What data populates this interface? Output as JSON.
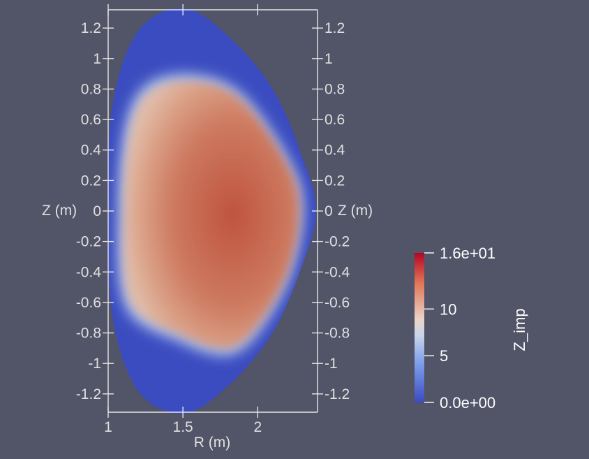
{
  "chart_data": {
    "type": "heatmap",
    "title": "",
    "xlabel": "R (m)",
    "ylabel_left": "Z (m)",
    "ylabel_right": "Z (m)",
    "xlim": [
      1.0,
      2.4
    ],
    "ylim": [
      -1.32,
      1.32
    ],
    "x_ticks": [
      {
        "value": 1.0,
        "label": "1"
      },
      {
        "value": 1.5,
        "label": "1.5"
      },
      {
        "value": 2.0,
        "label": "2"
      }
    ],
    "y_ticks": [
      {
        "value": 1.2,
        "label": "1.2"
      },
      {
        "value": 1.0,
        "label": "1"
      },
      {
        "value": 0.8,
        "label": "0.8"
      },
      {
        "value": 0.6,
        "label": "0.6"
      },
      {
        "value": 0.4,
        "label": "0.4"
      },
      {
        "value": 0.2,
        "label": "0.2"
      },
      {
        "value": 0.0,
        "label": "0"
      },
      {
        "value": -0.2,
        "label": "-0.2"
      },
      {
        "value": -0.4,
        "label": "-0.4"
      },
      {
        "value": -0.6,
        "label": "-0.6"
      },
      {
        "value": -0.8,
        "label": "-0.8"
      },
      {
        "value": -1.0,
        "label": "-1"
      },
      {
        "value": -1.2,
        "label": "-1.2"
      }
    ],
    "field_name": "Z_imp",
    "color_range": [
      0,
      16
    ],
    "colorbar_ticks": [
      {
        "value": 16,
        "label": "1.6e+01"
      },
      {
        "value": 10,
        "label": "10"
      },
      {
        "value": 5,
        "label": "5"
      },
      {
        "value": 0,
        "label": "0.0e+00"
      }
    ],
    "colormap": [
      "#3b4cc0",
      "#dddddd",
      "#b40426"
    ],
    "domain_boundary": [
      [
        1.5,
        1.33
      ],
      [
        1.8,
        1.15
      ],
      [
        2.1,
        0.8
      ],
      [
        2.3,
        0.35
      ],
      [
        2.39,
        0.0
      ],
      [
        2.3,
        -0.35
      ],
      [
        2.1,
        -0.8
      ],
      [
        1.8,
        -1.15
      ],
      [
        1.5,
        -1.33
      ],
      [
        1.2,
        -1.18
      ],
      [
        1.03,
        -0.7
      ],
      [
        1.0,
        0.0
      ],
      [
        1.03,
        0.7
      ],
      [
        1.2,
        1.18
      ]
    ],
    "core_boundary": [
      [
        1.6,
        0.85
      ],
      [
        1.9,
        0.72
      ],
      [
        2.2,
        0.3
      ],
      [
        2.28,
        0.0
      ],
      [
        2.2,
        -0.4
      ],
      [
        2.0,
        -0.75
      ],
      [
        1.8,
        -0.9
      ],
      [
        1.5,
        -0.82
      ],
      [
        1.15,
        -0.6
      ],
      [
        1.1,
        0.0
      ],
      [
        1.15,
        0.55
      ],
      [
        1.3,
        0.8
      ]
    ],
    "core_value": 13.0,
    "peak_value": 15.0,
    "peak_location": [
      1.75,
      0.0
    ],
    "edge_value": 0.5
  }
}
